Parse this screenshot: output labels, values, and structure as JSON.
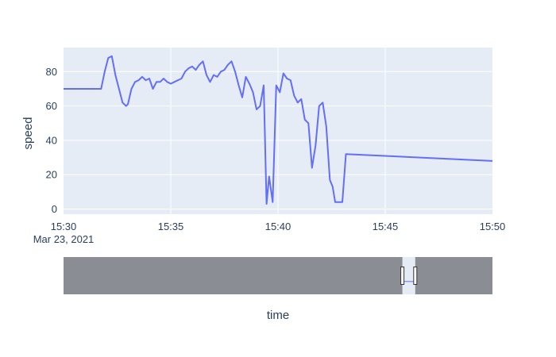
{
  "chart_data": {
    "type": "line",
    "xlabel": "time",
    "ylabel": "speed",
    "date_label": "Mar 23, 2021",
    "xlim": [
      "15:30",
      "15:50"
    ],
    "ylim": [
      -3,
      94
    ],
    "x_ticks": [
      "15:30",
      "15:35",
      "15:40",
      "15:45",
      "15:50"
    ],
    "y_ticks": [
      0,
      20,
      40,
      60,
      80
    ],
    "grid": true,
    "rangeslider": true,
    "rangeslider_window": [
      "15:45.8",
      "15:46.4"
    ],
    "colors": {
      "line": "#636efa",
      "plot_bg": "#e5ecf6",
      "grid": "#ffffff",
      "slider_mask": "#8a8d93",
      "text": "#2a3f5f"
    },
    "series": [
      {
        "x": [
          "15:30:00",
          "15:31:45",
          "15:31:55",
          "15:32:05",
          "15:32:15",
          "15:32:25",
          "15:32:35",
          "15:32:45",
          "15:32:55",
          "15:33:00",
          "15:33:10",
          "15:33:20",
          "15:33:30",
          "15:33:40",
          "15:33:50",
          "15:34:00",
          "15:34:10",
          "15:34:20",
          "15:34:30",
          "15:34:40",
          "15:34:50",
          "15:35:00",
          "15:35:10",
          "15:35:20",
          "15:35:30",
          "15:35:40",
          "15:35:50",
          "15:36:00",
          "15:36:10",
          "15:36:20",
          "15:36:30",
          "15:36:40",
          "15:36:50",
          "15:37:00",
          "15:37:10",
          "15:37:20",
          "15:37:30",
          "15:37:40",
          "15:37:50",
          "15:38:00",
          "15:38:10",
          "15:38:20",
          "15:38:30",
          "15:38:40",
          "15:38:50",
          "15:39:00",
          "15:39:10",
          "15:39:20",
          "15:39:28",
          "15:39:35",
          "15:39:45",
          "15:39:55",
          "15:40:05",
          "15:40:15",
          "15:40:25",
          "15:40:35",
          "15:40:45",
          "15:40:55",
          "15:41:05",
          "15:41:15",
          "15:41:25",
          "15:41:35",
          "15:41:45",
          "15:41:55",
          "15:42:05",
          "15:42:15",
          "15:42:25",
          "15:42:33",
          "15:42:40",
          "15:42:47",
          "15:43:00",
          "15:43:10",
          "15:50:00"
        ],
        "y": [
          70,
          70,
          80,
          88,
          89,
          78,
          70,
          62,
          60,
          61,
          70,
          74,
          75,
          77,
          75,
          76,
          70,
          74,
          74,
          76,
          74,
          73,
          74,
          75,
          76,
          80,
          82,
          83,
          81,
          84,
          86,
          78,
          74,
          78,
          77,
          80,
          81,
          84,
          86,
          80,
          72,
          65,
          77,
          73,
          68,
          58,
          60,
          72,
          3,
          19,
          4,
          72,
          68,
          79,
          76,
          75,
          66,
          62,
          64,
          52,
          50,
          24,
          37,
          60,
          62,
          48,
          17,
          13,
          4,
          4,
          4,
          32,
          28
        ]
      }
    ]
  }
}
